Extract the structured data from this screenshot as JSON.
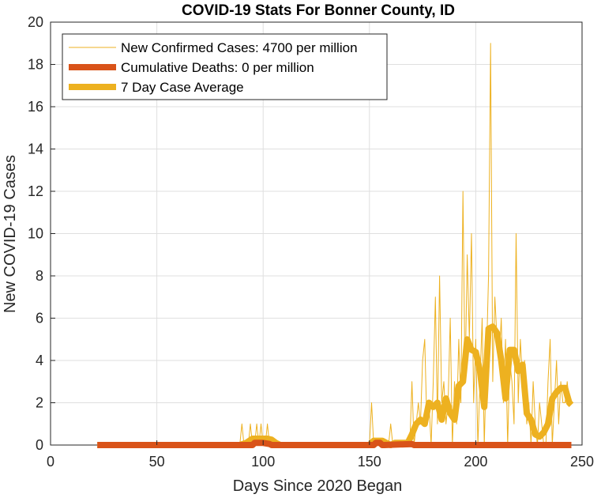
{
  "chart_data": {
    "type": "line",
    "title": "COVID-19 Stats For Bonner County, ID",
    "xlabel": "Days Since 2020 Began",
    "ylabel": "New COVID-19 Cases",
    "xlim": [
      0,
      250
    ],
    "ylim": [
      0,
      20
    ],
    "xticks": [
      0,
      50,
      100,
      150,
      200,
      250
    ],
    "yticks": [
      0,
      2,
      4,
      6,
      8,
      10,
      12,
      14,
      16,
      18,
      20
    ],
    "grid": true,
    "legend_position": "top-left",
    "series": [
      {
        "name": "New Confirmed Cases: 4700 per million",
        "color": "#EDB120",
        "style": "thin",
        "x": [
          22,
          89,
          90,
          91,
          92,
          93,
          94,
          95,
          96,
          97,
          98,
          99,
          100,
          101,
          102,
          103,
          104,
          105,
          106,
          107,
          108,
          109,
          110,
          150,
          151,
          152,
          153,
          154,
          155,
          156,
          157,
          158,
          159,
          160,
          161,
          162,
          163,
          164,
          165,
          166,
          167,
          168,
          169,
          170,
          171,
          172,
          173,
          174,
          175,
          176,
          177,
          178,
          179,
          180,
          181,
          182,
          183,
          184,
          185,
          186,
          187,
          188,
          189,
          190,
          191,
          192,
          193,
          194,
          195,
          196,
          197,
          198,
          199,
          200,
          201,
          202,
          203,
          204,
          205,
          206,
          207,
          208,
          209,
          210,
          211,
          212,
          213,
          214,
          215,
          216,
          217,
          218,
          219,
          220,
          221,
          222,
          223,
          224,
          225,
          226,
          227,
          228,
          229,
          230,
          231,
          232,
          233,
          234,
          235,
          236,
          237,
          238,
          239,
          240,
          241,
          242,
          243,
          244,
          245
        ],
        "y": [
          0,
          0,
          1,
          0,
          0,
          0,
          1,
          0,
          0,
          1,
          0,
          1,
          0,
          0,
          1,
          0,
          0,
          0,
          0,
          0,
          0,
          0,
          0,
          0,
          2,
          0,
          0,
          0,
          0,
          0,
          0,
          0,
          0,
          1,
          0,
          0,
          0,
          0,
          0,
          0,
          0,
          0,
          0,
          3,
          0,
          1,
          2,
          1,
          4,
          5,
          1,
          2,
          0,
          3,
          7,
          1,
          8,
          2,
          3,
          1,
          2,
          6,
          0,
          3,
          1,
          5,
          2,
          12,
          3,
          9,
          5,
          10,
          2,
          5,
          0,
          3,
          6,
          0,
          4,
          8,
          19,
          3,
          7,
          5,
          4,
          6,
          2,
          5,
          0,
          4,
          3,
          1,
          10,
          2,
          5,
          3,
          4,
          1,
          2,
          0,
          3,
          1,
          0,
          2,
          1,
          0,
          0,
          3,
          5,
          0,
          2,
          4,
          1,
          3,
          2,
          2,
          3,
          2,
          2
        ],
        "final_value_note": ""
      },
      {
        "name": "Cumulative Deaths: 0 per million",
        "color": "#D95319",
        "style": "thick",
        "x": [
          22,
          94,
          95,
          96,
          100,
          103,
          104,
          150,
          152,
          153,
          155,
          156,
          157,
          170,
          171,
          245
        ],
        "y": [
          0,
          0,
          0,
          0.1,
          0.1,
          0.05,
          0,
          0,
          0,
          0.1,
          0.1,
          0,
          0,
          0.05,
          0,
          0
        ]
      },
      {
        "name": "7 Day Case Average",
        "color": "#EDB120",
        "style": "thick",
        "x": [
          22,
          89,
          92,
          95,
          98,
          100,
          102,
          104,
          106,
          108,
          110,
          150,
          152,
          154,
          156,
          158,
          160,
          162,
          164,
          166,
          168,
          170,
          172,
          174,
          176,
          178,
          180,
          182,
          184,
          186,
          188,
          190,
          192,
          194,
          196,
          198,
          200,
          202,
          204,
          206,
          208,
          210,
          212,
          214,
          216,
          218,
          220,
          222,
          224,
          226,
          228,
          230,
          232,
          234,
          236,
          238,
          240,
          242,
          244,
          245
        ],
        "y": [
          0,
          0,
          0.1,
          0.3,
          0.3,
          0.3,
          0.3,
          0.25,
          0.1,
          0,
          0,
          0,
          0.2,
          0.2,
          0.2,
          0.1,
          0,
          0.1,
          0.1,
          0.1,
          0.1,
          0.5,
          1.0,
          1.2,
          1.0,
          2.0,
          1.8,
          2.0,
          1.2,
          2.2,
          1.5,
          1.2,
          2.8,
          3.0,
          5.0,
          4.5,
          4.4,
          3.5,
          1.8,
          5.5,
          5.6,
          5.3,
          4.0,
          2.2,
          4.5,
          4.5,
          3.5,
          3.8,
          1.5,
          1.2,
          0.5,
          0.4,
          0.6,
          1.0,
          2.2,
          2.5,
          2.7,
          2.7,
          2.0,
          1.9
        ]
      }
    ]
  }
}
